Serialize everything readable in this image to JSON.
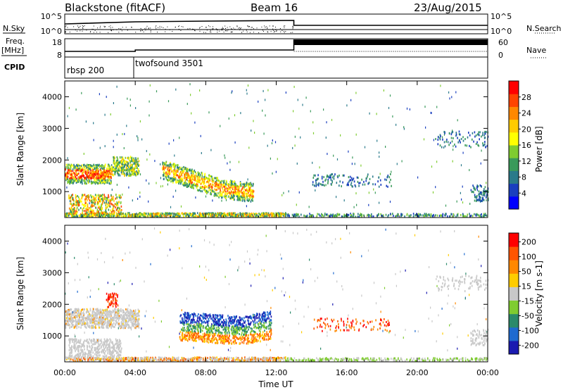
{
  "header": {
    "station": "Blackstone (fitACF)",
    "beam": "Beam 16",
    "date": "23/Aug/2015"
  },
  "params": {
    "nsky_label": "N.Sky",
    "nsearch_label": "N.Search",
    "freq_label_1": "Freq.",
    "freq_label_2": "[MHz]",
    "nave_label": "Nave",
    "cpid_label": "CPID",
    "left_ticks_top": [
      "10^5",
      "10^0"
    ],
    "right_ticks_top": [
      "10^5",
      "10^0"
    ],
    "left_ticks_freq": [
      "18",
      "8"
    ],
    "right_ticks_freq": [
      "60",
      "0"
    ],
    "cpid_segments": [
      {
        "label": "rbsp 200",
        "start_hour": 0
      },
      {
        "label": "twofsound 3501",
        "start_hour": 4
      }
    ]
  },
  "chart_data": [
    {
      "type": "heatmap",
      "quantity": "Power",
      "ylabel": "Slant Range [km]",
      "yticks": [
        "1000",
        "2000",
        "3000",
        "4000"
      ],
      "ylim": [
        180,
        4500
      ],
      "xlim": [
        0,
        24
      ],
      "colorbar": {
        "label": "Power [dB]",
        "ticks": [
          "4",
          "8",
          "12",
          "16",
          "20",
          "24",
          "28"
        ],
        "colors": [
          "#0000ff",
          "#1a3fbf",
          "#2a7a8a",
          "#3a9a5a",
          "#7fcc30",
          "#ffff00",
          "#ffcc00",
          "#ff8800",
          "#ff4400",
          "#ff0000"
        ]
      }
    },
    {
      "type": "heatmap",
      "quantity": "Velocity",
      "ylabel": "Slant Range [km]",
      "yticks": [
        "1000",
        "2000",
        "3000",
        "4000"
      ],
      "ylim": [
        180,
        4500
      ],
      "xlim": [
        0,
        24
      ],
      "xlabel": "Time UT",
      "xticks": [
        "00:00",
        "04:00",
        "08:00",
        "12:00",
        "16:00",
        "20:00",
        "00:00"
      ],
      "colorbar": {
        "label": "Velocity [m s-1]",
        "ticks": [
          "200",
          "100",
          "50",
          "15",
          "-15",
          "-50",
          "-100",
          "-200"
        ],
        "colors": [
          "#1a1ab0",
          "#1e6acf",
          "#2b8a6a",
          "#7fcc30",
          "#c8c8c8",
          "#ffcc00",
          "#ff8800",
          "#ff5500",
          "#ff0000"
        ]
      }
    }
  ]
}
